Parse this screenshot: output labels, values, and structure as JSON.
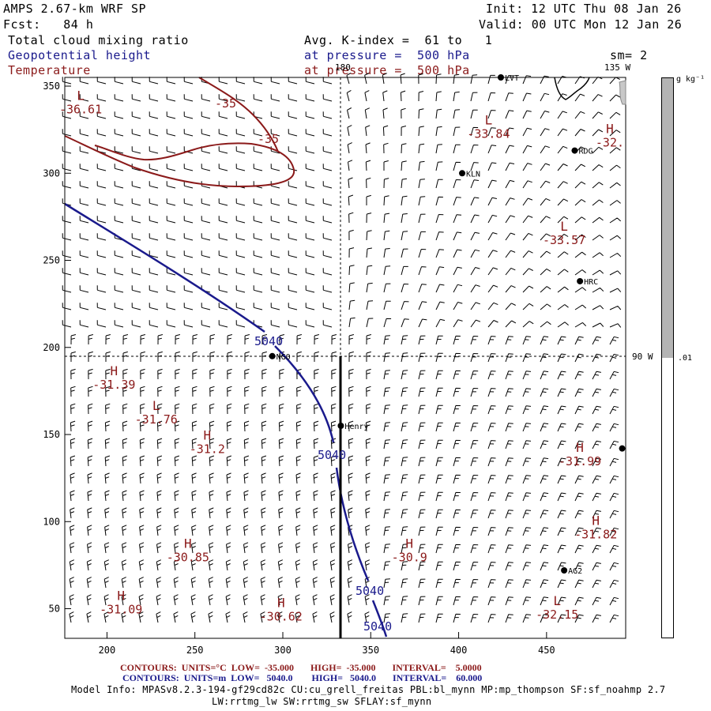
{
  "header": {
    "model_name": "AMPS 2.67-km WRF SP",
    "forecast": "Fcst:   84 h",
    "init": "Init: 12 UTC Thu 08 Jan 26",
    "valid": "Valid: 00 UTC Mon 12 Jan 26",
    "field1": "Total cloud mixing ratio",
    "field2": "Geopotential height",
    "field3": "Temperature",
    "avg": "Avg. K-index =  61 to   1",
    "pressure1": "at pressure =  500 hPa",
    "pressure2": "at pressure =  500 hPa",
    "smoothing": "sm= 2"
  },
  "colors": {
    "height": "#1a1a8c",
    "temperature": "#8b1a1a",
    "colorbar_fill": "#b4b4b4"
  },
  "map": {
    "x_ticks": [
      "200",
      "250",
      "300",
      "350",
      "400",
      "450"
    ],
    "x_tick_values": [
      200,
      250,
      300,
      350,
      400,
      450
    ],
    "y_ticks": [
      "50",
      "100",
      "150",
      "200",
      "250",
      "300",
      "350"
    ],
    "y_tick_values": [
      50,
      100,
      150,
      200,
      250,
      300,
      350
    ],
    "x_range": [
      176,
      495
    ],
    "y_range": [
      33,
      355
    ],
    "meridian_labels": {
      "lon180": "180",
      "lon135": "135 W",
      "lon90": "90 W"
    },
    "stations": [
      {
        "name": "LVT",
        "x": 424,
        "y": 355
      },
      {
        "name": "RDG",
        "x": 466,
        "y": 313
      },
      {
        "name": "KLN",
        "x": 402,
        "y": 300
      },
      {
        "name": "HRC",
        "x": 469,
        "y": 238
      },
      {
        "name": "NGO",
        "x": 294,
        "y": 195
      },
      {
        "name": "Henry",
        "x": 333,
        "y": 155
      },
      {
        "name": "AG2",
        "x": 460,
        "y": 72
      },
      {
        "name": "",
        "x": 493,
        "y": 142
      }
    ],
    "extrema": [
      {
        "kind": "L",
        "value": "-36.61",
        "x": 185,
        "y": 342
      },
      {
        "kind": "L",
        "value": "-33.84",
        "x": 417,
        "y": 328
      },
      {
        "kind": "H",
        "value": "-32.",
        "x": 486,
        "y": 323
      },
      {
        "kind": "L",
        "value": "-33.57",
        "x": 460,
        "y": 267
      },
      {
        "kind": "H",
        "value": "-31.39",
        "x": 204,
        "y": 184
      },
      {
        "kind": "L",
        "value": "-31.76",
        "x": 228,
        "y": 164
      },
      {
        "kind": "H",
        "value": "-31.2",
        "x": 257,
        "y": 147
      },
      {
        "kind": "H",
        "value": "-31.99",
        "x": 469,
        "y": 140
      },
      {
        "kind": "H",
        "value": "-31.82",
        "x": 478,
        "y": 98
      },
      {
        "kind": "H",
        "value": "-30.85",
        "x": 246,
        "y": 85
      },
      {
        "kind": "H",
        "value": "-30.9",
        "x": 372,
        "y": 85
      },
      {
        "kind": "H",
        "value": "-31.09",
        "x": 208,
        "y": 55
      },
      {
        "kind": "H",
        "value": "-30.62",
        "x": 299,
        "y": 51
      },
      {
        "kind": "L",
        "value": "-32.15",
        "x": 456,
        "y": 52
      }
    ],
    "contour_labels": {
      "temp_a": "-35",
      "temp_b": "-35",
      "height_a": "5040",
      "height_b": "5040",
      "height_c": "5040",
      "height_d": "5040"
    }
  },
  "colorbar": {
    "units": "g kg⁻¹",
    "low_label": ".01",
    "fill_fraction": 0.5
  },
  "footer": {
    "temp_contours": "CONTOURS:  UNITS=°C  LOW=  -35.000       HIGH=  -35.000       INTERVAL=    5.0000",
    "height_contours": "CONTOURS:  UNITS=m  LOW=   5040.0        HIGH=   5040.0       INTERVAL=    60.000",
    "model_info1": "Model Info: MPASv8.2.3-194-gf29cd82c CU:cu_grell_freitas PBL:bl_mynn MP:mp_thompson SF:sf_noahmp 2.7",
    "model_info2": "LW:rrtmg_lw SW:rrtmg_sw SFLAY:sf_mynn"
  }
}
